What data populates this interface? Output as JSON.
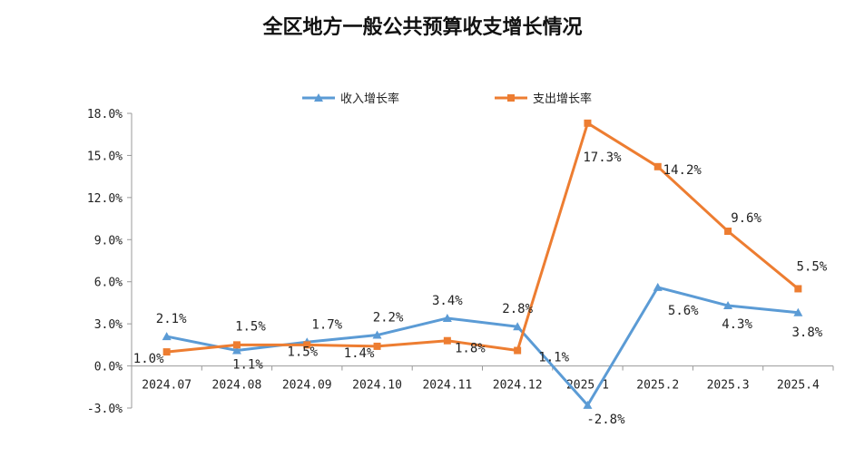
{
  "chart_data": {
    "type": "line",
    "title": "全区地方一般公共预算收支增长情况",
    "categories": [
      "2024.07",
      "2024.08",
      "2024.09",
      "2024.10",
      "2024.11",
      "2024.12",
      "2025.1",
      "2025.2",
      "2025.3",
      "2025.4"
    ],
    "series": [
      {
        "name": "收入增长率",
        "color": "#5b9bd5",
        "marker": "triangle",
        "values": [
          2.1,
          1.1,
          1.7,
          2.2,
          3.4,
          2.8,
          -2.8,
          5.6,
          4.3,
          3.8
        ],
        "labels": [
          "2.1%",
          "1.1%",
          "1.7%",
          "2.2%",
          "3.4%",
          "2.8%",
          "-2.8%",
          "5.6%",
          "4.3%",
          "3.8%"
        ]
      },
      {
        "name": "支出增长率",
        "color": "#ed7d31",
        "marker": "square",
        "values": [
          1.0,
          1.5,
          1.5,
          1.4,
          1.8,
          1.1,
          17.3,
          14.2,
          9.6,
          5.5
        ],
        "labels": [
          "1.0%",
          "1.5%",
          "1.5%",
          "1.4%",
          "1.8%",
          "1.1%",
          "17.3%",
          "14.2%",
          "9.6%",
          "5.5%"
        ]
      }
    ],
    "yticks": [
      "-3.0%",
      "0.0%",
      "3.0%",
      "6.0%",
      "9.0%",
      "12.0%",
      "15.0%",
      "18.0%"
    ],
    "ylim": [
      -3,
      18
    ],
    "grid": false,
    "legend": "top"
  }
}
